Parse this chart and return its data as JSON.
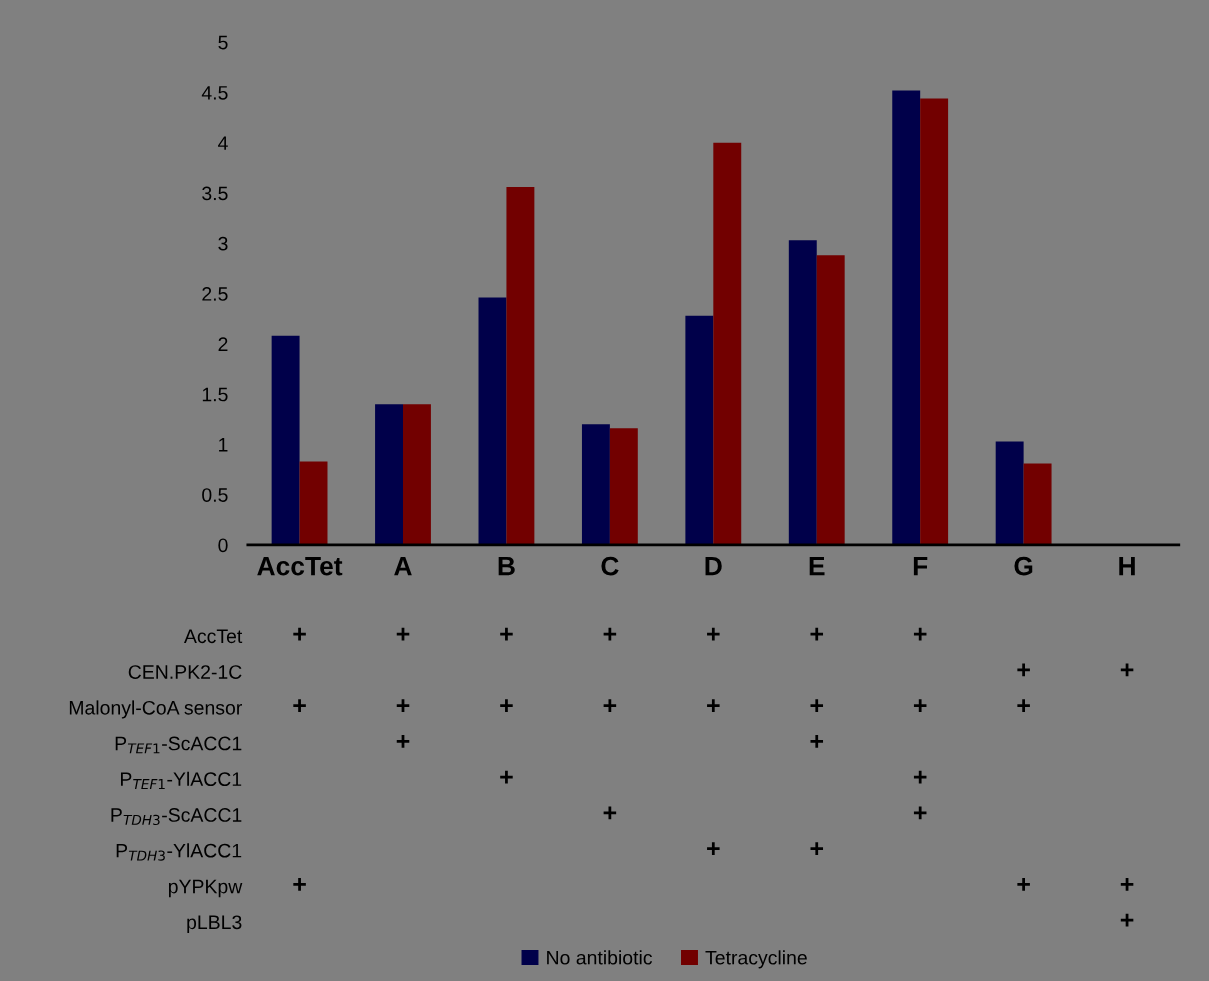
{
  "chart_data": [
    {
      "type": "bar",
      "categories": [
        "AccTet",
        "A",
        "B",
        "C",
        "D",
        "E",
        "F",
        "G",
        "H"
      ],
      "series": [
        {
          "name": "No antibiotic",
          "color": "#00004a",
          "values": [
            2.08,
            1.4,
            2.46,
            1.2,
            2.28,
            3.03,
            4.52,
            1.03,
            0
          ]
        },
        {
          "name": "Tetracycline",
          "color": "#720000",
          "values": [
            0.83,
            1.4,
            3.56,
            1.16,
            4.0,
            2.88,
            4.44,
            0.81,
            0
          ]
        }
      ],
      "ylim": [
        0,
        5
      ],
      "yticks": [
        0,
        0.5,
        1,
        1.5,
        2,
        2.5,
        3,
        3.5,
        4,
        4.5,
        5
      ],
      "grid": false,
      "legend": "bottom"
    },
    {
      "type": "other",
      "categories": [
        null,
        null,
        null,
        null,
        null,
        null,
        null,
        null,
        null
      ],
      "y_categories": [
        "AccTet",
        "CEN.PK2-1C",
        "Malonyl-CoA sensor",
        "P$_{TEF1}$-ScACC1",
        "P$_{TEF1}$-YlACC1",
        "P$_{TDH3}$-ScACC1",
        "P$_{TDH3}$-YlACC1",
        "pYPKpw",
        "pLBL3"
      ],
      "cell_labels": [
        [
          "+",
          "+",
          "+",
          "+",
          "+",
          "+",
          "+",
          null,
          null
        ],
        [
          null,
          null,
          null,
          null,
          null,
          null,
          null,
          "+",
          "+"
        ],
        [
          "+",
          "+",
          "+",
          "+",
          "+",
          "+",
          "+",
          "+",
          null
        ],
        [
          null,
          "+",
          null,
          null,
          null,
          "+",
          null,
          null,
          null
        ],
        [
          null,
          null,
          "+",
          null,
          null,
          null,
          "+",
          null,
          null
        ],
        [
          null,
          null,
          null,
          "+",
          null,
          null,
          "+",
          null,
          null
        ],
        [
          null,
          null,
          null,
          null,
          "+",
          "+",
          null,
          null,
          null
        ],
        [
          "+",
          null,
          null,
          null,
          null,
          null,
          null,
          "+",
          "+"
        ],
        [
          null,
          null,
          null,
          null,
          null,
          null,
          null,
          null,
          "+"
        ]
      ]
    }
  ]
}
